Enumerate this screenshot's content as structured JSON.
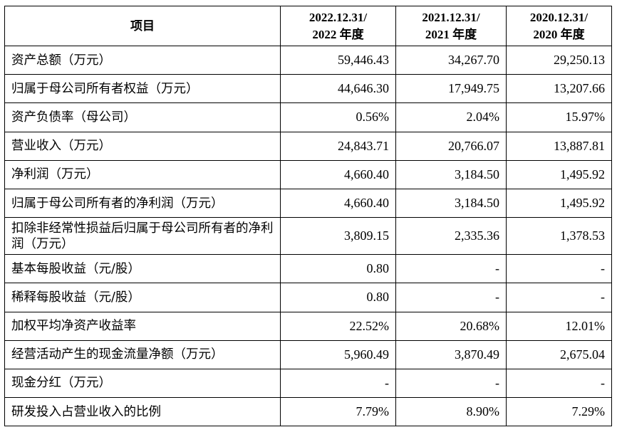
{
  "table": {
    "headers": [
      {
        "line1": "项目",
        "line2": ""
      },
      {
        "line1": "2022.12.31/",
        "line2": "2022 年度"
      },
      {
        "line1": "2021.12.31/",
        "line2": "2021 年度"
      },
      {
        "line1": "2020.12.31/",
        "line2": "2020 年度"
      }
    ],
    "rows": [
      {
        "label": "资产总额（万元）",
        "v2022": "59,446.43",
        "v2021": "34,267.70",
        "v2020": "29,250.13"
      },
      {
        "label": "归属于母公司所有者权益（万元）",
        "v2022": "44,646.30",
        "v2021": "17,949.75",
        "v2020": "13,207.66"
      },
      {
        "label": "资产负债率（母公司）",
        "v2022": "0.56%",
        "v2021": "2.04%",
        "v2020": "15.97%"
      },
      {
        "label": "营业收入（万元）",
        "v2022": "24,843.71",
        "v2021": "20,766.07",
        "v2020": "13,887.81"
      },
      {
        "label": "净利润（万元）",
        "v2022": "4,660.40",
        "v2021": "3,184.50",
        "v2020": "1,495.92"
      },
      {
        "label": "归属于母公司所有者的净利润（万元）",
        "v2022": "4,660.40",
        "v2021": "3,184.50",
        "v2020": "1,495.92"
      },
      {
        "label": "扣除非经常性损益后归属于母公司所有者的净利润（万元）",
        "v2022": "3,809.15",
        "v2021": "2,335.36",
        "v2020": "1,378.53"
      },
      {
        "label": "基本每股收益（元/股）",
        "v2022": "0.80",
        "v2021": "-",
        "v2020": "-"
      },
      {
        "label": "稀释每股收益（元/股）",
        "v2022": "0.80",
        "v2021": "-",
        "v2020": "-"
      },
      {
        "label": "加权平均净资产收益率",
        "v2022": "22.52%",
        "v2021": "20.68%",
        "v2020": "12.01%"
      },
      {
        "label": "经营活动产生的现金流量净额（万元）",
        "v2022": "5,960.49",
        "v2021": "3,870.49",
        "v2020": "2,675.04"
      },
      {
        "label": "现金分红（万元）",
        "v2022": "-",
        "v2021": "-",
        "v2020": "-"
      },
      {
        "label": "研发投入占营业收入的比例",
        "v2022": "7.79%",
        "v2021": "8.90%",
        "v2020": "7.29%"
      }
    ]
  }
}
